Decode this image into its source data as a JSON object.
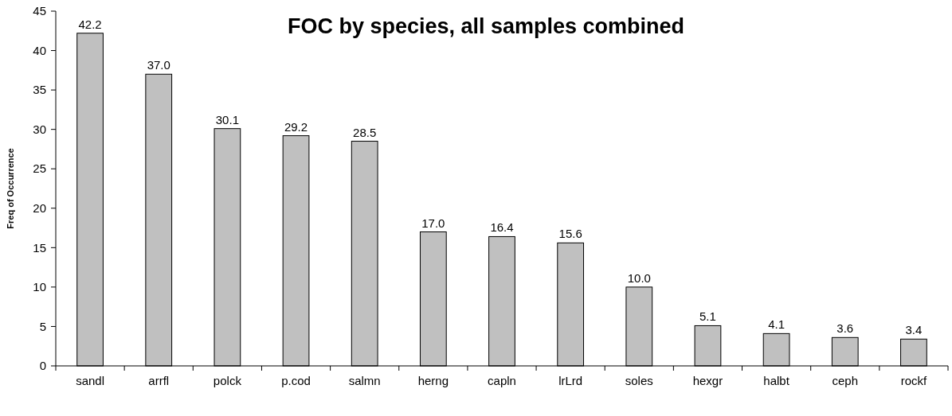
{
  "chart_data": {
    "type": "bar",
    "title": "FOC by species, all samples combined",
    "ylabel": "Freq of Occurrence",
    "categories": [
      "sandl",
      "arrfl",
      "polck",
      "p.cod",
      "salmn",
      "herng",
      "capln",
      "lrLrd",
      "soles",
      "hexgr",
      "halbt",
      "ceph",
      "rockf"
    ],
    "values": [
      42.2,
      37.0,
      30.1,
      29.2,
      28.5,
      17.0,
      16.4,
      15.6,
      10.0,
      5.1,
      4.1,
      3.6,
      3.4
    ],
    "value_labels": [
      "42.2",
      "37.0",
      "30.1",
      "29.2",
      "28.5",
      "17.0",
      "16.4",
      "15.6",
      "10.0",
      "5.1",
      "4.1",
      "3.6",
      "3.4"
    ],
    "color": "#c0c0c0",
    "ylim": [
      0,
      45
    ],
    "yticks": [
      0,
      5,
      10,
      15,
      20,
      25,
      30,
      35,
      40,
      45
    ],
    "grid": false
  }
}
